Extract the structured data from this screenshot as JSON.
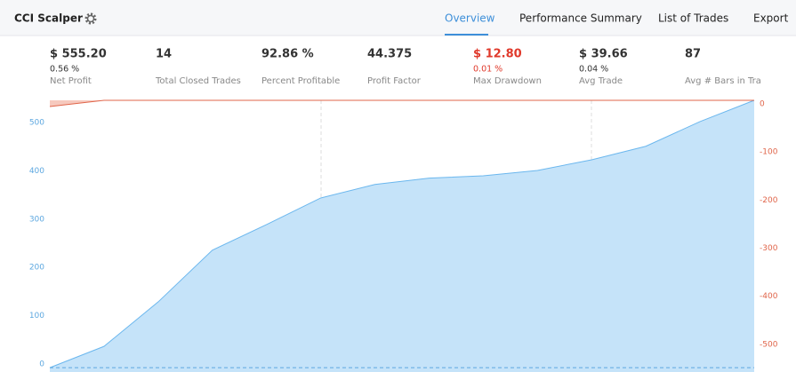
{
  "header": {
    "title": "CCI Scalper",
    "tabs": [
      "Overview",
      "Performance Summary",
      "List of Trades",
      "Export"
    ]
  },
  "stats": [
    {
      "value": "$ 555.20",
      "sub": "0.56 %",
      "label": "Net Profit"
    },
    {
      "value": "14",
      "label": "Total Closed Trades"
    },
    {
      "value": "92.86 %",
      "label": "Percent Profitable"
    },
    {
      "value": "44.375",
      "label": "Profit Factor"
    },
    {
      "value": "$ 12.80",
      "sub": "0.01 %",
      "label": "Max Drawdown"
    },
    {
      "value": "$ 39.66",
      "sub": "0.04 %",
      "label": "Avg Trade"
    },
    {
      "value": "87",
      "label": "Avg # Bars in Tra"
    }
  ],
  "chart_data": {
    "type": "area",
    "series": [
      {
        "name": "Equity",
        "color": "#6bb7ee",
        "fill": "#c5e3f9",
        "values": [
          0,
          44,
          136,
          243,
          296,
          351,
          379,
          392,
          397,
          408,
          430,
          458,
          509,
          553
        ]
      },
      {
        "name": "Drawdown",
        "color": "#e0654a",
        "axis": "y2",
        "values": [
          -13,
          0,
          0,
          0,
          0,
          0,
          0,
          0,
          0,
          0,
          0,
          0,
          0,
          0
        ]
      }
    ],
    "ylim": [
      -9,
      553
    ],
    "yticks": [
      0,
      100,
      200,
      300,
      400,
      500
    ],
    "y2lim": [
      -565,
      0
    ],
    "y2ticks": [
      0,
      -100,
      -200,
      -300,
      -400,
      -500
    ]
  }
}
